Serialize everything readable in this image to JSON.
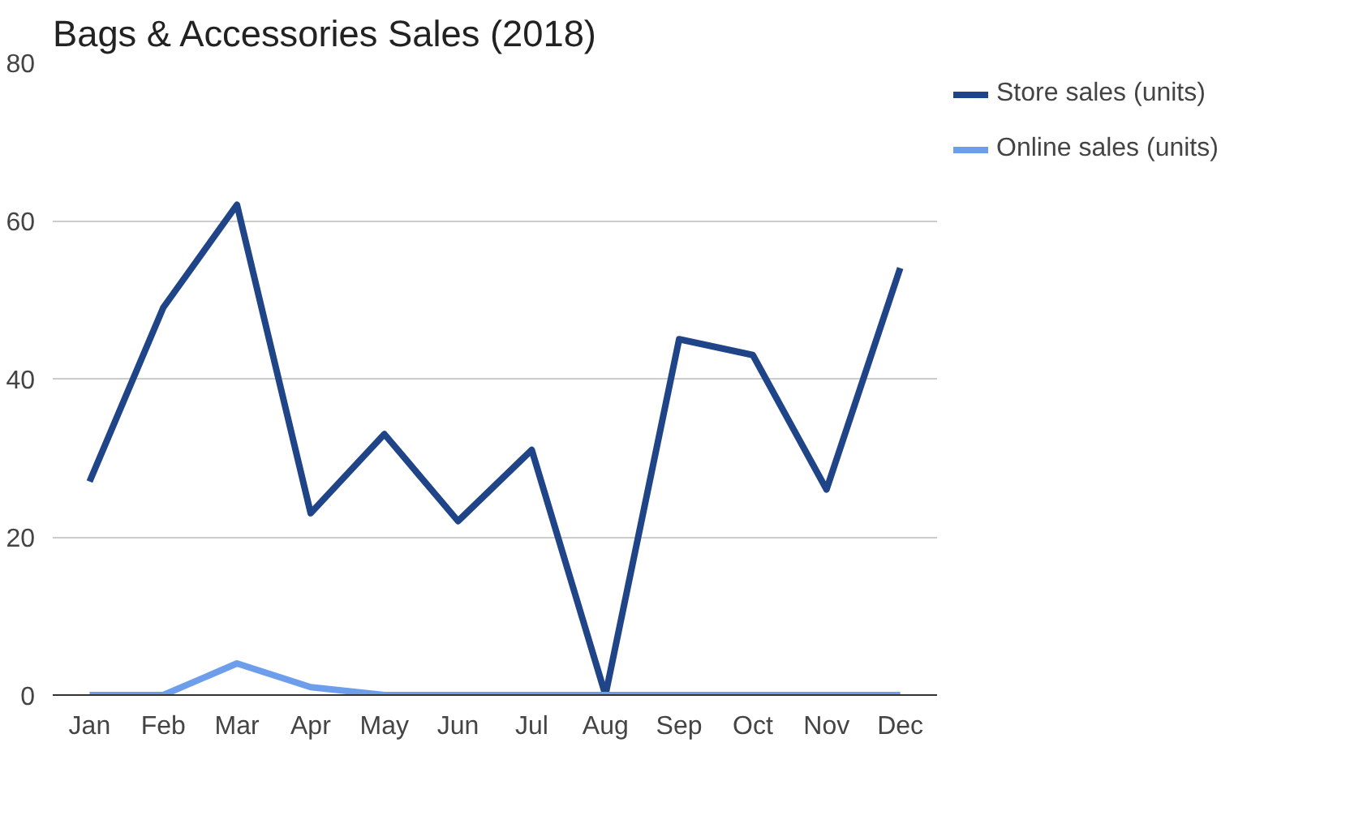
{
  "chart_data": {
    "type": "line",
    "title": "Bags & Accessories Sales (2018)",
    "categories": [
      "Jan",
      "Feb",
      "Mar",
      "Apr",
      "May",
      "Jun",
      "Jul",
      "Aug",
      "Sep",
      "Oct",
      "Nov",
      "Dec"
    ],
    "series": [
      {
        "name": "Store sales (units)",
        "color": "#1f4488",
        "values": [
          27,
          49,
          62,
          23,
          33,
          22,
          31,
          0,
          45,
          43,
          26,
          54
        ]
      },
      {
        "name": "Online sales (units)",
        "color": "#6d9eeb",
        "values": [
          0,
          0,
          4,
          1,
          0,
          0,
          0,
          0,
          0,
          0,
          0,
          0
        ]
      }
    ],
    "ylim": [
      0,
      80
    ],
    "yticks": [
      0,
      20,
      40,
      60,
      80
    ],
    "grid": "y",
    "legend": "top right",
    "marker": "none",
    "line_style": "solid"
  }
}
